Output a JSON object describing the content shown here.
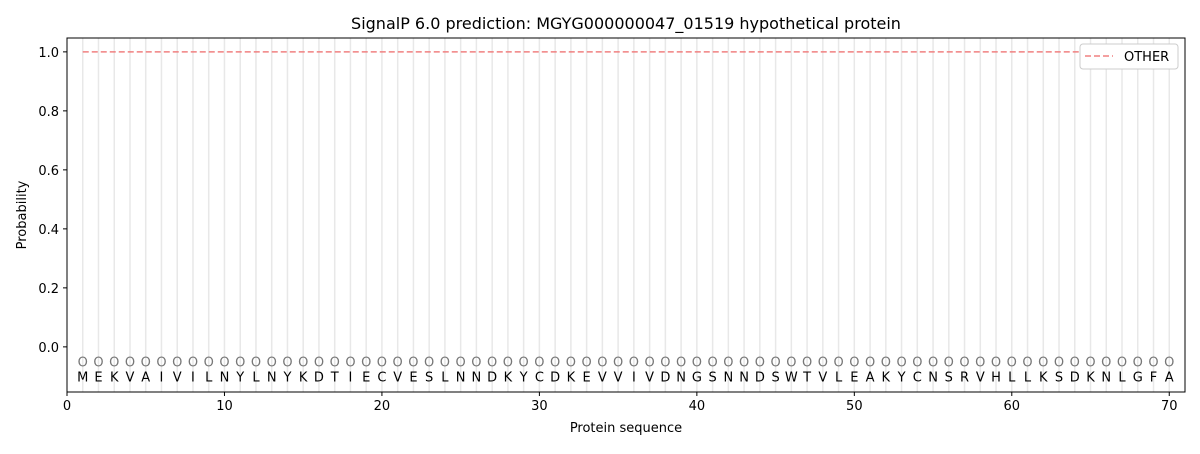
{
  "chart_data": {
    "type": "line",
    "title": "SignalP 6.0 prediction: MGYG000000047_01519 hypothetical protein",
    "xlabel": "Protein sequence",
    "ylabel": "Probability",
    "xlim": [
      0,
      71
    ],
    "ylim": [
      -0.153,
      1.047
    ],
    "xticks": [
      0,
      10,
      20,
      30,
      40,
      50,
      60,
      70
    ],
    "yticks": [
      0.0,
      0.2,
      0.4,
      0.6,
      0.8,
      1.0
    ],
    "ytick_labels": [
      "0.0",
      "0.2",
      "0.4",
      "0.6",
      "0.8",
      "1.0"
    ],
    "grid": "vertical lines at each residue",
    "legend_position": "top-right",
    "sequence": [
      "M",
      "E",
      "K",
      "V",
      "A",
      "I",
      "V",
      "I",
      "L",
      "N",
      "Y",
      "L",
      "N",
      "Y",
      "K",
      "D",
      "T",
      "I",
      "E",
      "C",
      "V",
      "E",
      "S",
      "L",
      "N",
      "N",
      "D",
      "K",
      "Y",
      "C",
      "D",
      "K",
      "E",
      "V",
      "V",
      "I",
      "V",
      "D",
      "N",
      "G",
      "S",
      "N",
      "N",
      "D",
      "S",
      "W",
      "T",
      "V",
      "L",
      "E",
      "A",
      "K",
      "Y",
      "C",
      "N",
      "S",
      "R",
      "V",
      "H",
      "L",
      "L",
      "K",
      "S",
      "D",
      "K",
      "N",
      "L",
      "G",
      "F",
      "A"
    ],
    "predicted_labels": "O",
    "series": [
      {
        "name": "OTHER",
        "color": "#f08080",
        "style": "dashed",
        "x_range": [
          1,
          70
        ],
        "value": 1.0
      }
    ]
  }
}
